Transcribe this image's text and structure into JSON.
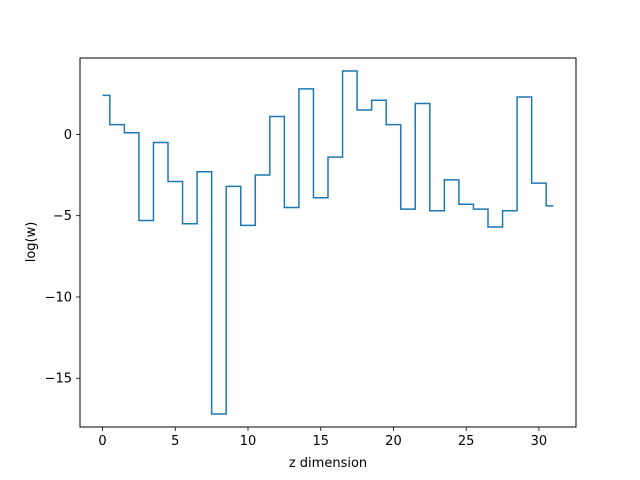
{
  "chart_data": {
    "type": "line",
    "drawstyle": "steps-mid",
    "title": "",
    "xlabel": "z dimension",
    "ylabel": "log(w)",
    "xlim": [
      -1.55,
      32.55
    ],
    "ylim": [
      -18.0,
      4.7
    ],
    "xticks": [
      0,
      5,
      10,
      15,
      20,
      25,
      30
    ],
    "yticks": [
      -15,
      -10,
      -5,
      0
    ],
    "grid": false,
    "color": "#1f77b4",
    "series": [
      {
        "x": [
          0,
          1,
          2,
          3,
          4,
          5,
          6,
          7,
          8,
          9,
          10,
          11,
          12,
          13,
          14,
          15,
          16,
          17,
          18,
          19,
          20,
          21,
          22,
          23,
          24,
          25,
          26,
          27,
          28,
          29,
          30,
          31
        ],
        "y": [
          2.4,
          0.6,
          0.1,
          -5.3,
          -0.5,
          -2.9,
          -5.5,
          -2.3,
          -17.2,
          -3.2,
          -5.6,
          -2.5,
          1.1,
          -4.5,
          2.8,
          -3.9,
          -1.4,
          3.9,
          1.5,
          2.1,
          0.6,
          -4.6,
          1.9,
          -4.7,
          -2.8,
          -4.3,
          -4.6,
          -5.7,
          -4.7,
          2.3,
          -3.0,
          -4.4
        ]
      }
    ]
  }
}
